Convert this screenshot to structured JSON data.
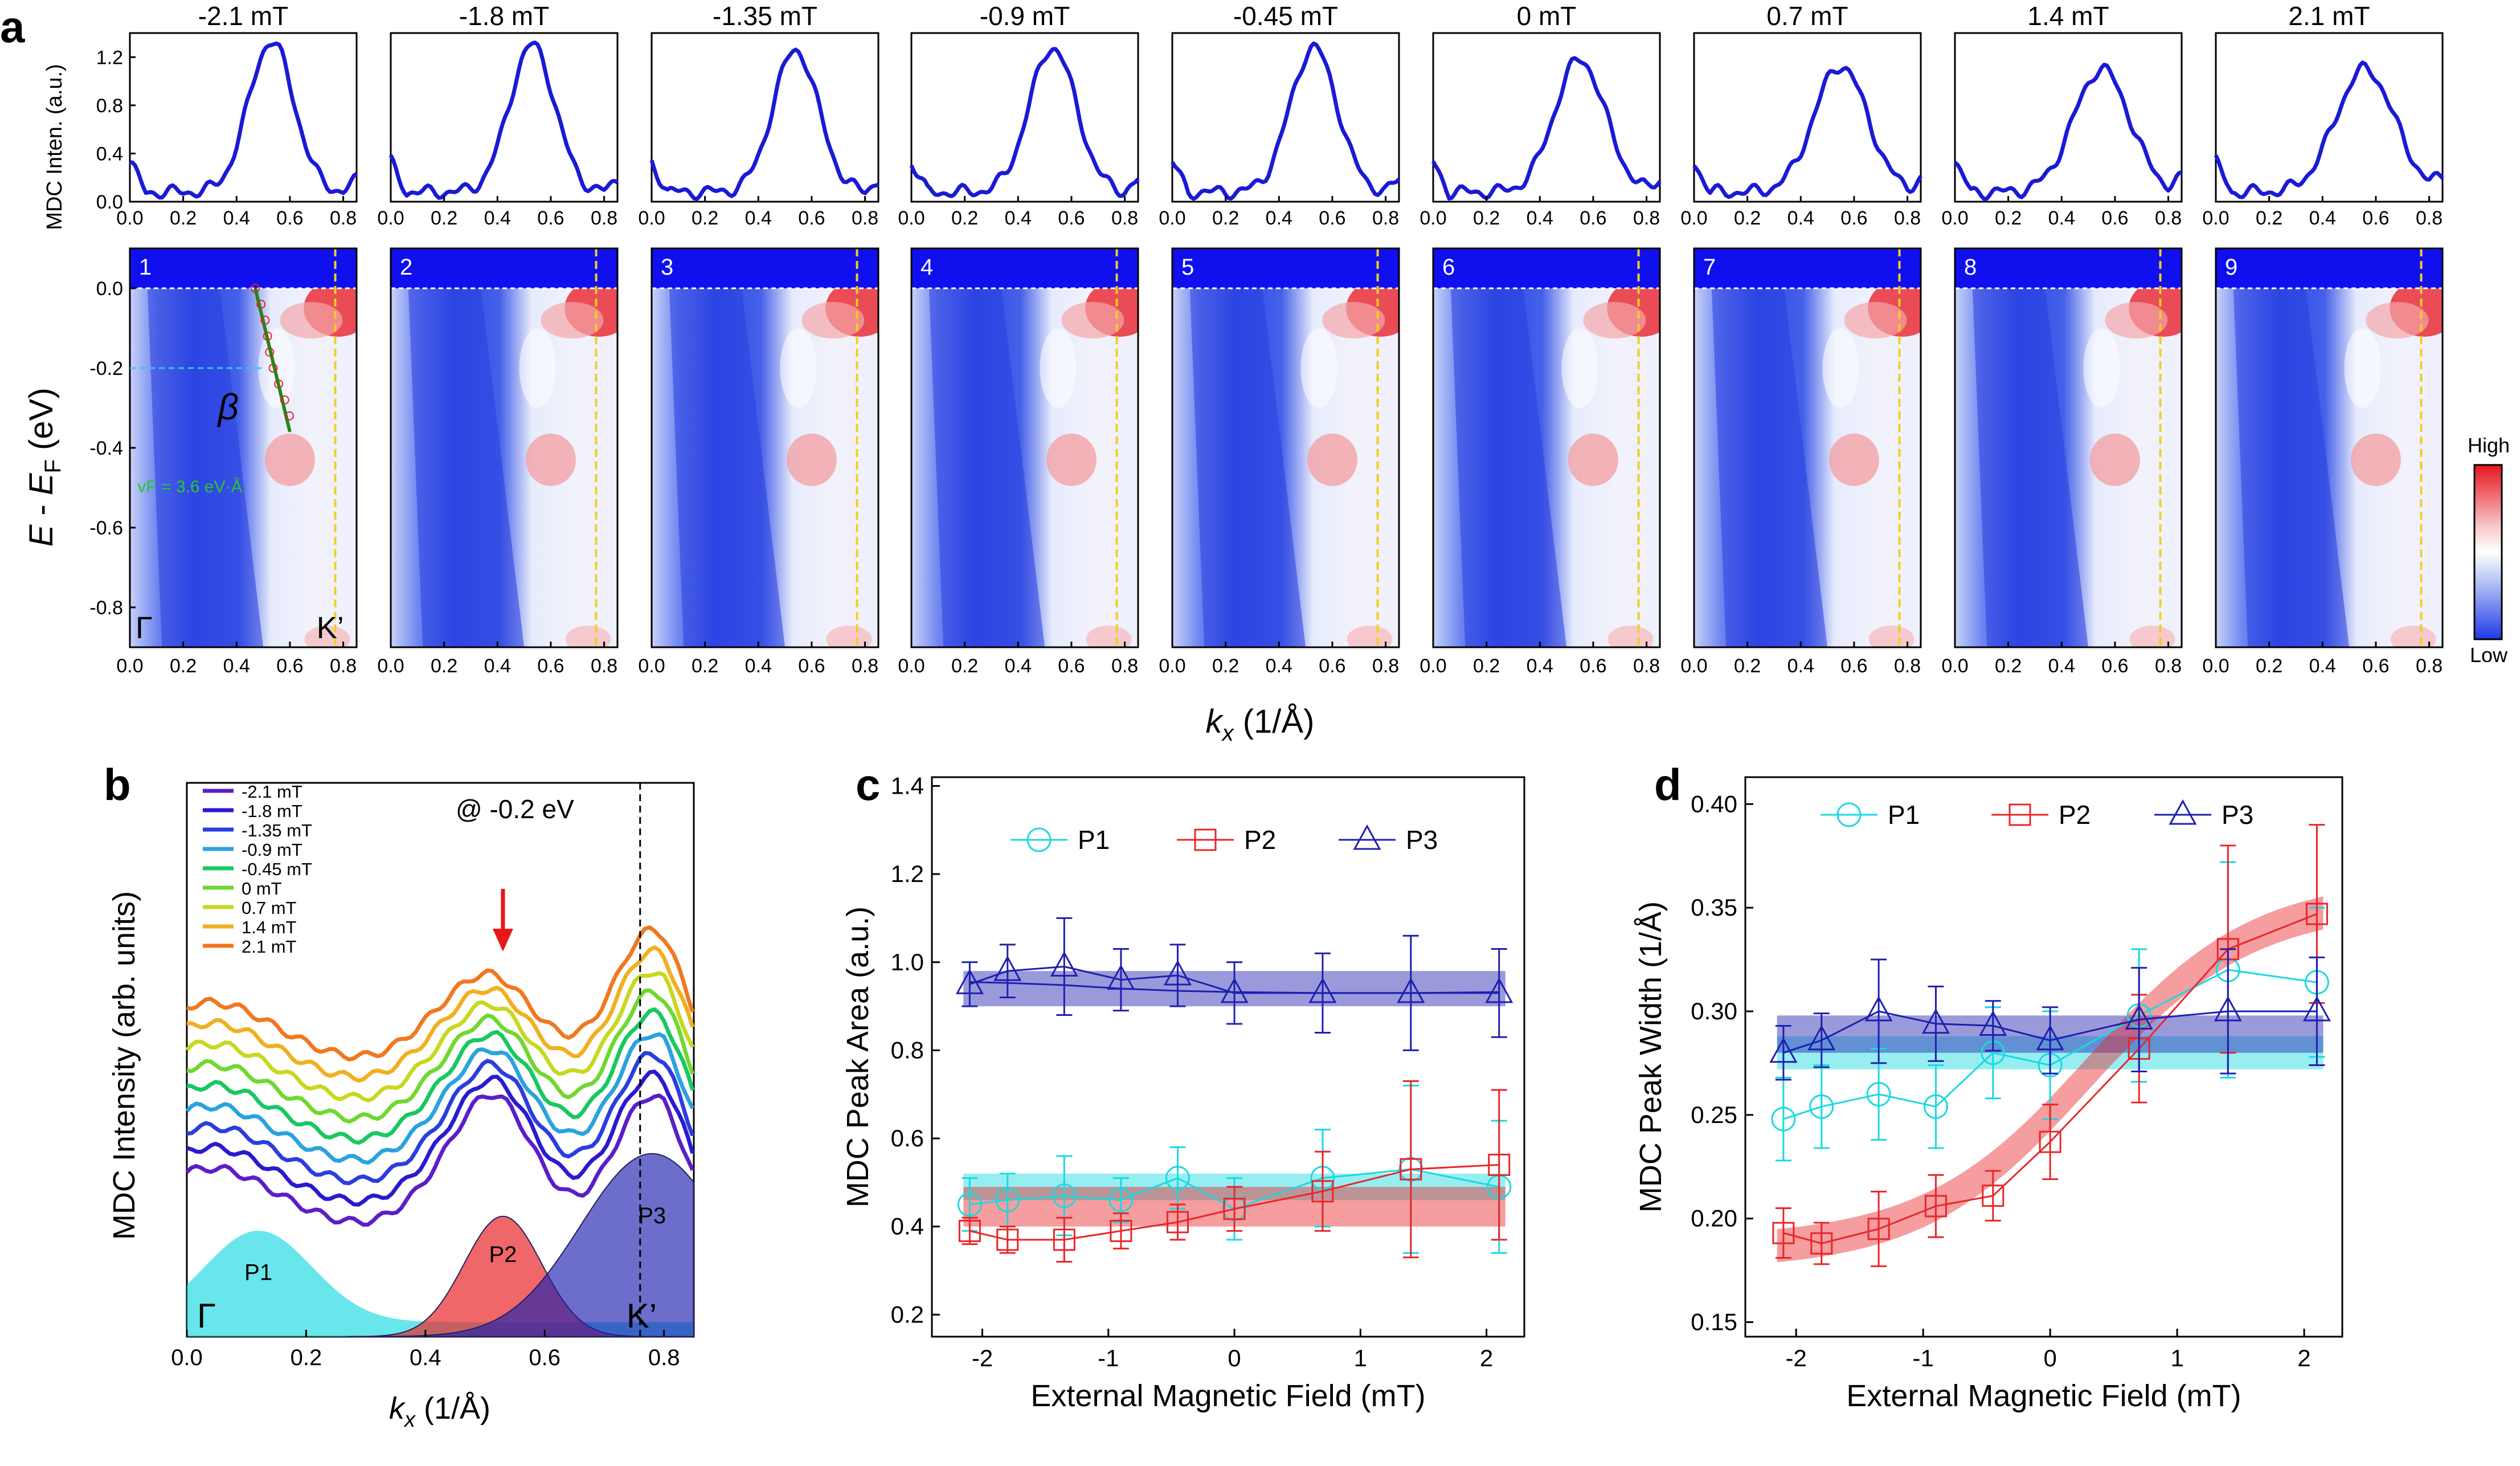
{
  "panel_labels": {
    "a": "a",
    "b": "b",
    "c": "c",
    "d": "d"
  },
  "colors": {
    "mdc_line": "#1a1ad6",
    "map_low": "#1f3ae8",
    "map_high": "#e8141e",
    "p1": "#19d9e0",
    "p2": "#e8262a",
    "p3": "#1f1fb0",
    "kprime_line": "#f0d020",
    "ef_line": "#ffffff"
  },
  "chart_data": [
    {
      "id": "a-mdc",
      "type": "line",
      "ylabel": "MDC Inten. (a.u.)",
      "xlim": [
        0,
        0.85
      ],
      "ylim": [
        0,
        1.4
      ],
      "yticks": [
        "0.0",
        "0.4",
        "0.8",
        "1.2"
      ],
      "xticks": [
        "0.0",
        "0.2",
        "0.4",
        "0.6",
        "0.8"
      ],
      "series": [
        {
          "name": "-2.1 mT",
          "peak": 1.25,
          "center": 0.53,
          "width": 0.085
        },
        {
          "name": "-1.8 mT",
          "peak": 1.22,
          "center": 0.53,
          "width": 0.085
        },
        {
          "name": "-1.35 mT",
          "peak": 1.18,
          "center": 0.54,
          "width": 0.085
        },
        {
          "name": "-0.9 mT",
          "peak": 1.2,
          "center": 0.53,
          "width": 0.088
        },
        {
          "name": "-0.45 mT",
          "peak": 1.2,
          "center": 0.53,
          "width": 0.088
        },
        {
          "name": "0 mT",
          "peak": 1.1,
          "center": 0.55,
          "width": 0.095
        },
        {
          "name": "0.7 mT",
          "peak": 1.05,
          "center": 0.55,
          "width": 0.1
        },
        {
          "name": "1.4 mT",
          "peak": 1.02,
          "center": 0.55,
          "width": 0.105
        },
        {
          "name": "2.1 mT",
          "peak": 1.02,
          "center": 0.56,
          "width": 0.11
        }
      ]
    },
    {
      "id": "a-maps",
      "type": "heatmap",
      "ylabel": "E - E_F (eV)",
      "xlabel": "k_x (1/Å)",
      "xlim": [
        0,
        0.85
      ],
      "ylim": [
        -0.9,
        0.1
      ],
      "yticks": [
        "0.0",
        "-0.2",
        "-0.4",
        "-0.6",
        "-0.8"
      ],
      "xticks": [
        "0.0",
        "0.2",
        "0.4",
        "0.6",
        "0.8"
      ],
      "map_numbers": [
        "1",
        "2",
        "3",
        "4",
        "5",
        "6",
        "7",
        "8",
        "9"
      ],
      "kprime_position": 0.77,
      "annotations": {
        "gamma": "Γ",
        "kprime": "K’",
        "band": "β",
        "velocity": "vF = 3.6 eV·Å"
      },
      "colorbar": {
        "high": "High",
        "low": "Low"
      }
    },
    {
      "id": "b",
      "type": "line",
      "ylabel": "MDC Intensity (arb. units)",
      "xlabel": "k_x (1/Å)",
      "xlim": [
        0,
        0.85
      ],
      "xticks": [
        "0.0",
        "0.2",
        "0.4",
        "0.6",
        "0.8"
      ],
      "annotation": "@ -0.2 eV",
      "legend": [
        "-2.1 mT",
        "-1.8 mT",
        "-1.35 mT",
        "-0.9 mT",
        "-0.45 mT",
        "0 mT",
        "0.7 mT",
        "1.4 mT",
        "2.1 mT"
      ],
      "legend_colors": [
        "#5a1fc8",
        "#2a1ad0",
        "#2a3ee0",
        "#2aa2e0",
        "#18c860",
        "#70d830",
        "#c8d820",
        "#f0b020",
        "#f07820"
      ],
      "peaks": [
        {
          "name": "P1",
          "center": 0.12,
          "amplitude": 0.19,
          "width": 0.09
        },
        {
          "name": "P2",
          "center": 0.53,
          "amplitude": 0.25,
          "width": 0.065
        },
        {
          "name": "P3",
          "center": 0.78,
          "amplitude": 0.38,
          "width": 0.12
        }
      ],
      "gamma_label": "Γ",
      "kprime_label": "K’",
      "kprime_position": 0.76
    },
    {
      "id": "c",
      "type": "scatter",
      "ylabel": "MDC Peak Area (a.u.)",
      "xlabel": "External Magnetic Field (mT)",
      "xlim": [
        -2.4,
        2.3
      ],
      "ylim": [
        0.15,
        1.42
      ],
      "xticks": [
        -2,
        -1,
        0,
        1,
        2
      ],
      "yticks": [
        "0.2",
        "0.4",
        "0.6",
        "0.8",
        "1.0",
        "1.2",
        "1.4"
      ],
      "x": [
        -2.1,
        -1.8,
        -1.35,
        -0.9,
        -0.45,
        0,
        0.7,
        1.4,
        2.1
      ],
      "series": [
        {
          "name": "P1",
          "values": [
            0.45,
            0.46,
            0.47,
            0.46,
            0.51,
            0.44,
            0.51,
            0.53,
            0.49
          ],
          "errors": [
            0.06,
            0.06,
            0.09,
            0.05,
            0.07,
            0.07,
            0.11,
            0.19,
            0.15
          ]
        },
        {
          "name": "P2",
          "values": [
            0.39,
            0.37,
            0.37,
            0.39,
            0.41,
            0.44,
            0.48,
            0.53,
            0.54
          ],
          "errors": [
            0.03,
            0.03,
            0.05,
            0.04,
            0.04,
            0.05,
            0.09,
            0.2,
            0.17
          ]
        },
        {
          "name": "P3",
          "values": [
            0.95,
            0.98,
            0.99,
            0.96,
            0.97,
            0.93,
            0.93,
            0.93,
            0.93
          ],
          "errors": [
            0.05,
            0.06,
            0.11,
            0.07,
            0.07,
            0.07,
            0.09,
            0.13,
            0.1
          ]
        }
      ],
      "bands": [
        {
          "name": "P1",
          "low": 0.46,
          "high": 0.52
        },
        {
          "name": "P2",
          "low": 0.4,
          "high": 0.49
        },
        {
          "name": "P3",
          "low": 0.9,
          "high": 0.98
        }
      ],
      "p3_fit": [
        0.955,
        0.953,
        0.948,
        0.94,
        0.935,
        0.932,
        0.93,
        0.93,
        0.932
      ]
    },
    {
      "id": "d",
      "type": "scatter",
      "ylabel": "MDC Peak Width (1/Å)",
      "xlabel": "External Magnetic Field (mT)",
      "xlim": [
        -2.4,
        2.3
      ],
      "ylim": [
        0.143,
        0.413
      ],
      "xticks": [
        -2,
        -1,
        0,
        1,
        2
      ],
      "yticks": [
        "0.15",
        "0.20",
        "0.25",
        "0.30",
        "0.35",
        "0.40"
      ],
      "x": [
        -2.1,
        -1.8,
        -1.35,
        -0.9,
        -0.45,
        0,
        0.7,
        1.4,
        2.1
      ],
      "series": [
        {
          "name": "P1",
          "values": [
            0.248,
            0.254,
            0.26,
            0.254,
            0.28,
            0.274,
            0.298,
            0.32,
            0.314
          ],
          "errors": [
            0.02,
            0.02,
            0.022,
            0.02,
            0.022,
            0.026,
            0.032,
            0.052,
            0.036
          ]
        },
        {
          "name": "P2",
          "values": [
            0.193,
            0.188,
            0.195,
            0.206,
            0.211,
            0.237,
            0.282,
            0.33,
            0.347
          ],
          "errors": [
            0.012,
            0.01,
            0.018,
            0.015,
            0.012,
            0.018,
            0.026,
            0.05,
            0.043
          ]
        },
        {
          "name": "P3",
          "values": [
            0.28,
            0.286,
            0.3,
            0.294,
            0.293,
            0.286,
            0.296,
            0.3,
            0.3
          ],
          "errors": [
            0.013,
            0.013,
            0.025,
            0.018,
            0.012,
            0.016,
            0.025,
            0.03,
            0.026
          ]
        }
      ],
      "bands": [
        {
          "name": "P1",
          "low": 0.272,
          "high": 0.288
        },
        {
          "name": "P3",
          "low": 0.28,
          "high": 0.298
        }
      ],
      "p2_sigmoid": {
        "low": 0.183,
        "high": 0.357,
        "center": 0.3,
        "scale": 0.65,
        "band_halfwidth": 0.008
      }
    }
  ]
}
